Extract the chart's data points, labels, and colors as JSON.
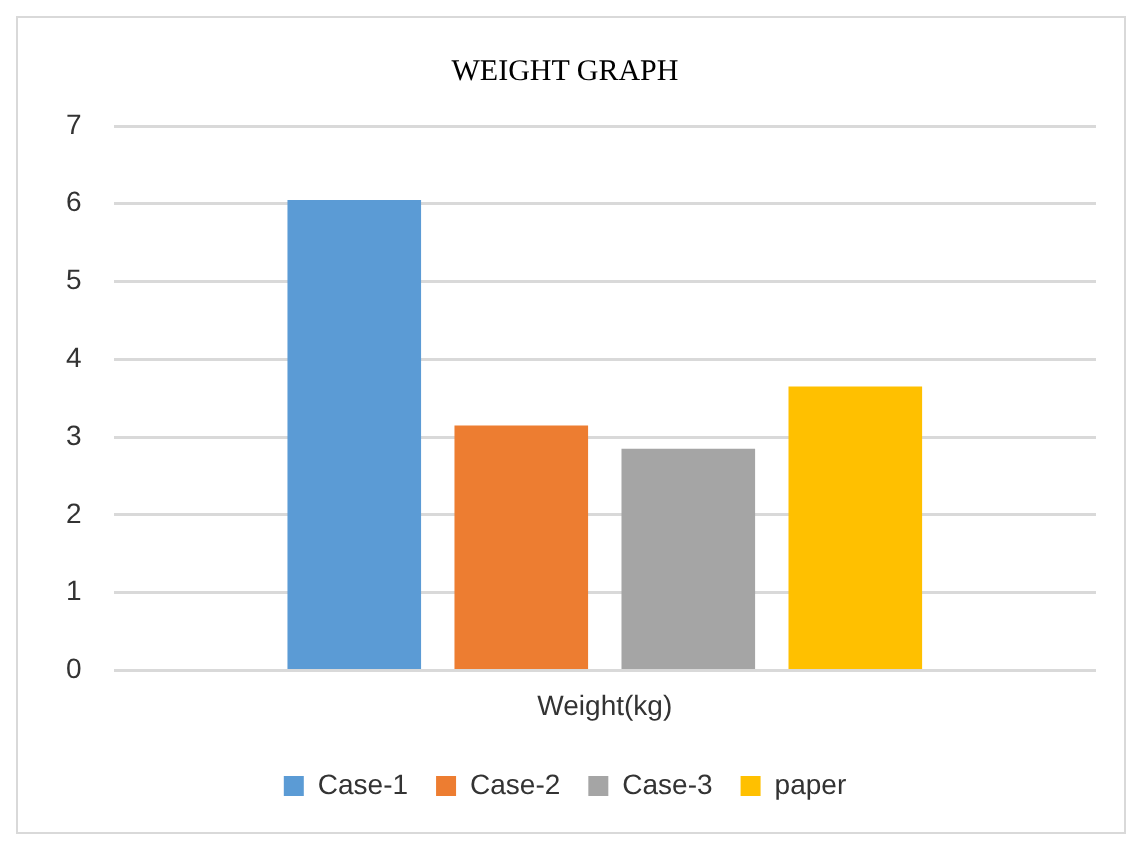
{
  "chart_data": {
    "type": "bar",
    "title": "WEIGHT GRAPH",
    "categories": [
      "Weight(kg)"
    ],
    "series": [
      {
        "name": "Case-1",
        "color": "#5b9bd5",
        "values": [
          6.05
        ]
      },
      {
        "name": "Case-2",
        "color": "#ed7d31",
        "values": [
          3.15
        ]
      },
      {
        "name": "Case-3",
        "color": "#a5a5a5",
        "values": [
          2.85
        ]
      },
      {
        "name": "paper",
        "color": "#ffc000",
        "values": [
          3.65
        ]
      }
    ],
    "ylim": [
      0,
      7
    ],
    "yticks": [
      0,
      1,
      2,
      3,
      4,
      5,
      6,
      7
    ],
    "grid": "y",
    "legend": "bottom"
  }
}
